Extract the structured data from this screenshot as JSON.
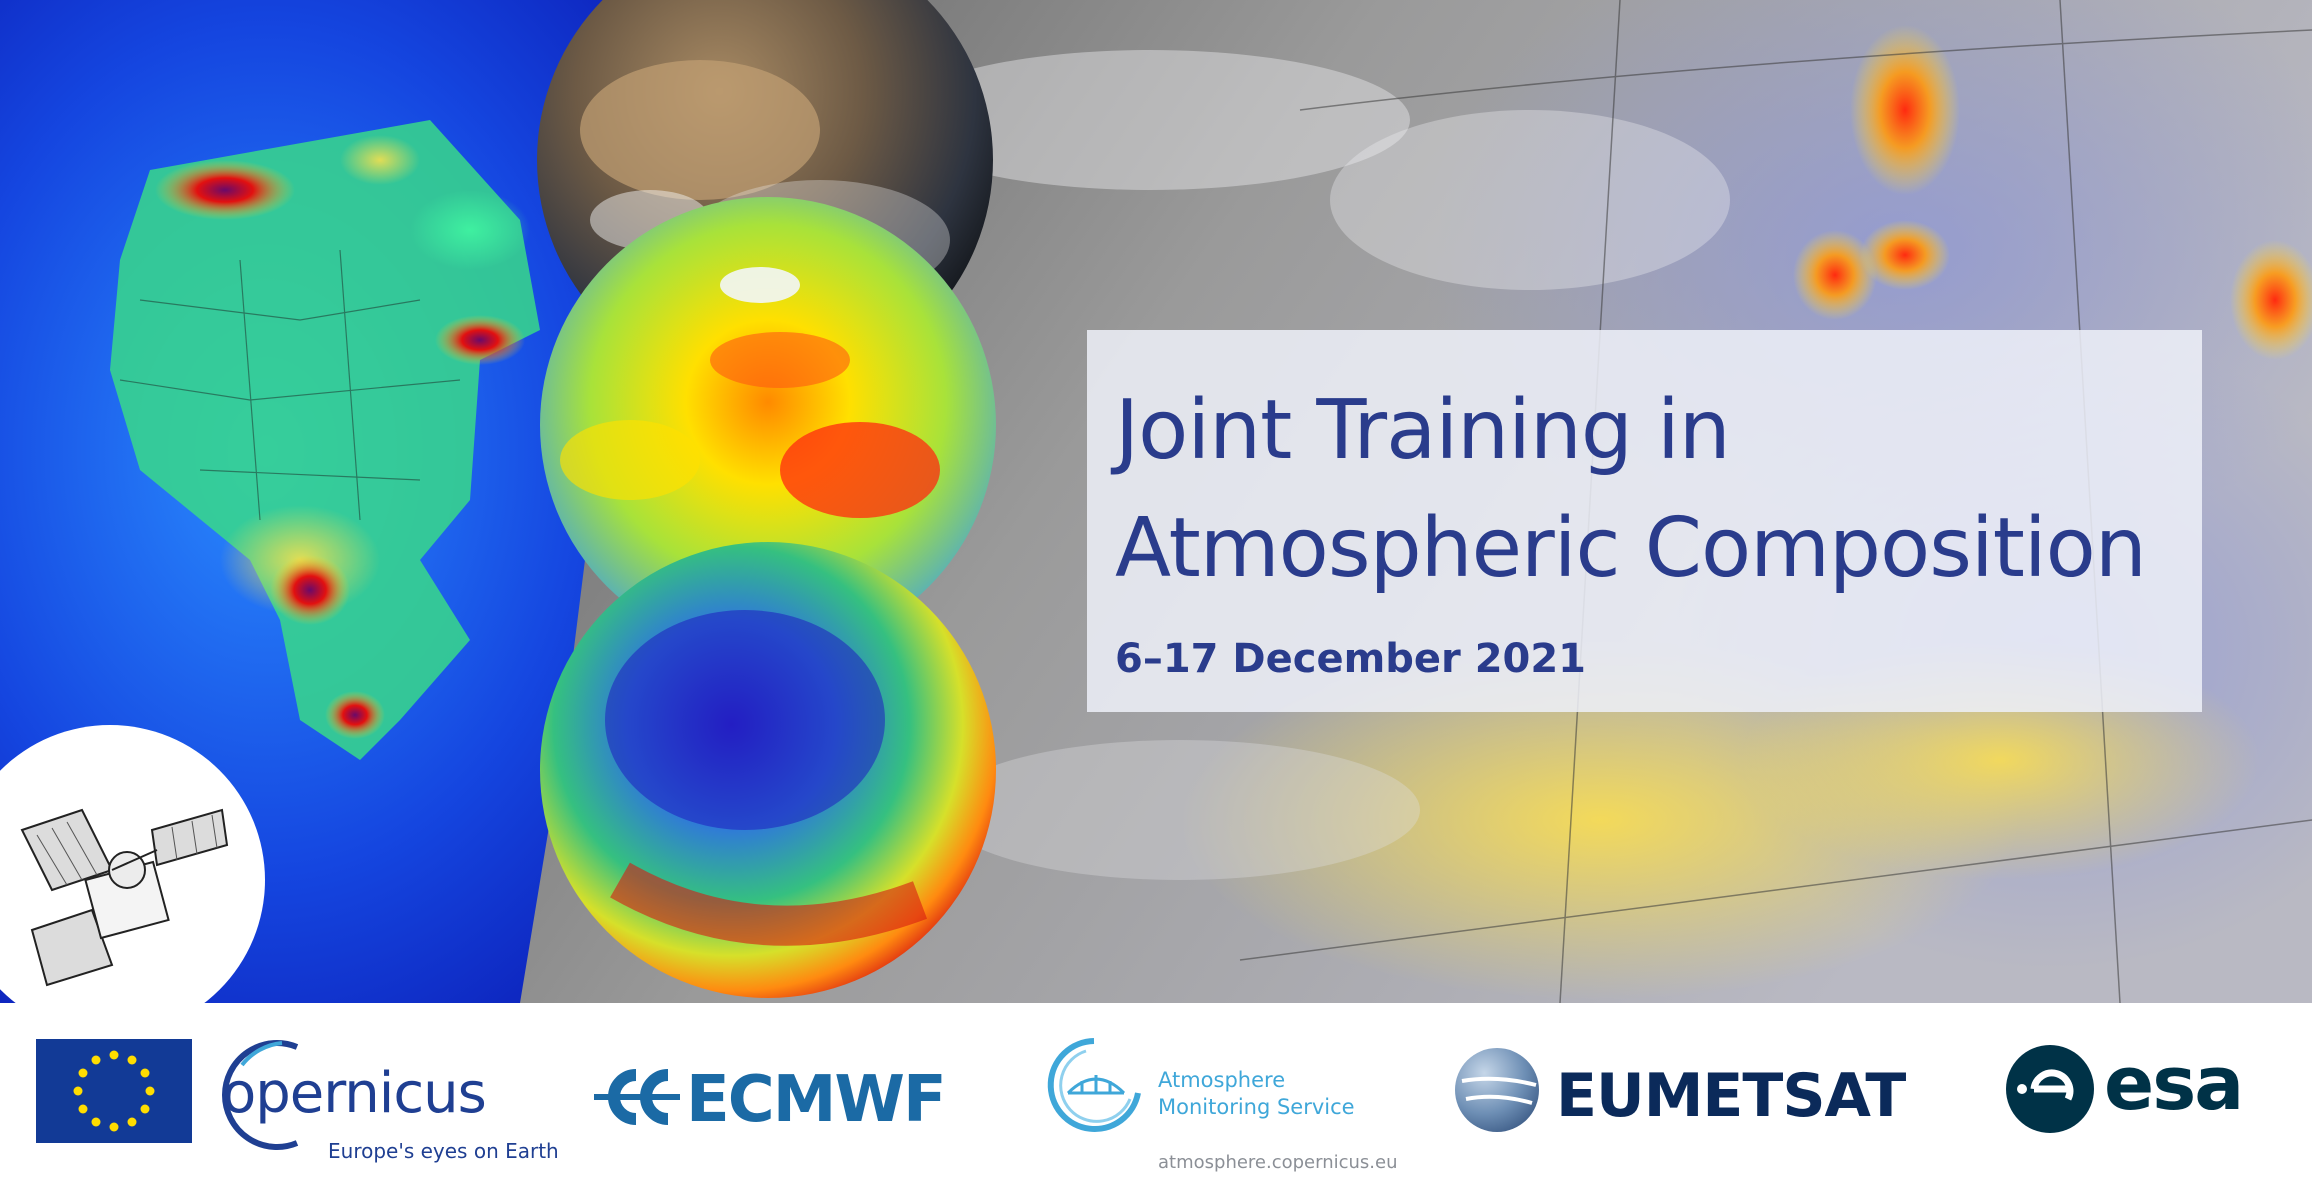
{
  "banner": {
    "title_line_1": "Joint Training in",
    "title_line_2": "Atmospheric Composition",
    "date": "6–17 December 2021"
  },
  "logos": {
    "copernicus": {
      "wordmark": "opernicus",
      "tagline": "Europe's eyes on Earth"
    },
    "ecmwf": {
      "wordmark": "ECMWF"
    },
    "cams": {
      "name_line_1": "Atmosphere",
      "name_line_2": "Monitoring Service",
      "url": "atmosphere.copernicus.eu"
    },
    "eumetsat": {
      "wordmark": "EUMETSAT"
    },
    "esa": {
      "wordmark": "esa"
    }
  },
  "icons": [
    "satellite-icon",
    "eu-flag-icon",
    "ecmwf-mark-icon",
    "cams-globe-icon",
    "eumetsat-mark-icon",
    "esa-mark-icon"
  ],
  "colors": {
    "title_text": "#2a3c8c",
    "copernicus_blue": "#1f3f92",
    "ecmwf_blue": "#1b6aa5",
    "cams_blue": "#3fa7d9",
    "eumetsat_navy": "#0b2a5a",
    "esa_teal": "#003247"
  }
}
